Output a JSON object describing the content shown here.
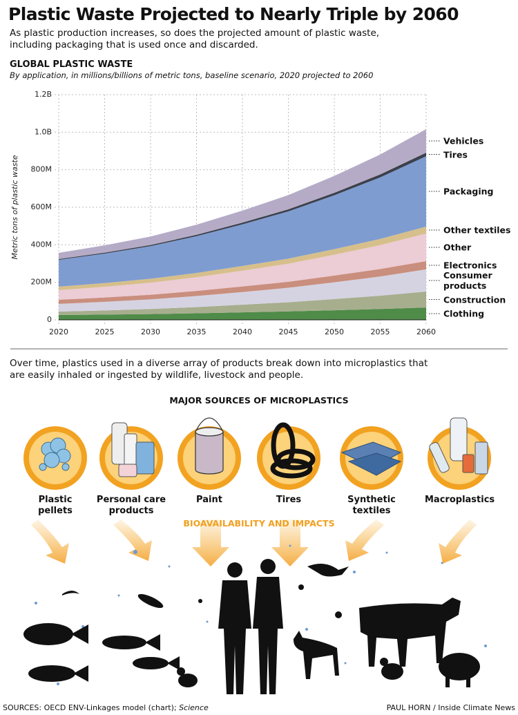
{
  "header": {
    "title": "Plastic Waste Projected to Nearly Triple by 2060",
    "subtitle": "As plastic production increases, so does the projected amount of plastic waste, including packaging that is used once and discarded."
  },
  "chart_data": {
    "type": "area",
    "stacked": true,
    "title": "GLOBAL PLASTIC WASTE",
    "subtitle": "By application, in millions/billions of metric tons, baseline scenario, 2020 projected to 2060",
    "y_label": "Metric tons of plastic waste",
    "x": [
      2020,
      2025,
      2030,
      2035,
      2040,
      2045,
      2050,
      2055,
      2060
    ],
    "xlim": [
      2020,
      2060
    ],
    "xticks": [
      2020,
      2025,
      2030,
      2035,
      2040,
      2045,
      2050,
      2055,
      2060
    ],
    "ylim": [
      0,
      1200000000
    ],
    "yticks": [
      0,
      {
        "value": 200000000,
        "label": "200M"
      },
      {
        "value": 400000000,
        "label": "400M"
      },
      {
        "value": 600000000,
        "label": "600M"
      },
      {
        "value": 800000000,
        "label": "800M"
      },
      {
        "value": 1000000000,
        "label": "1.0B"
      },
      {
        "value": 1200000000,
        "label": "1.2B"
      }
    ],
    "grid": true,
    "series": [
      {
        "name": "Clothing",
        "color": "#4f8b49",
        "values": [
          26000000,
          28000000,
          31000000,
          35000000,
          40000000,
          45000000,
          51000000,
          58000000,
          66000000
        ]
      },
      {
        "name": "Construction",
        "color": "#a7ae8e",
        "values": [
          18000000,
          22000000,
          27000000,
          33000000,
          41000000,
          49000000,
          60000000,
          71000000,
          85000000
        ]
      },
      {
        "name": "Consumer products",
        "color": "#d5d3e2",
        "values": [
          41000000,
          46000000,
          51000000,
          59000000,
          67000000,
          77000000,
          89000000,
          102000000,
          118000000
        ]
      },
      {
        "name": "Electronics",
        "color": "#c98e7d",
        "values": [
          22000000,
          23000000,
          25000000,
          27000000,
          30000000,
          32000000,
          36000000,
          40000000,
          44000000
        ]
      },
      {
        "name": "Other",
        "color": "#ecccd5",
        "values": [
          51000000,
          57000000,
          64000000,
          73000000,
          84000000,
          96000000,
          111000000,
          127000000,
          147000000
        ]
      },
      {
        "name": "Other textiles",
        "color": "#d7bf8b",
        "values": [
          19000000,
          20000000,
          21000000,
          23000000,
          25000000,
          27000000,
          30000000,
          33000000,
          37000000
        ]
      },
      {
        "name": "Packaging",
        "color": "#7e9cd0",
        "values": [
          143000000,
          157000000,
          174000000,
          196000000,
          222000000,
          252000000,
          287000000,
          328000000,
          375000000
        ]
      },
      {
        "name": "Tires",
        "color": "#3b404b",
        "values": [
          4000000,
          5000000,
          6000000,
          7000000,
          9000000,
          11000000,
          13000000,
          16000000,
          19000000
        ]
      },
      {
        "name": "Vehicles",
        "color": "#b5abc7",
        "values": [
          33000000,
          39000000,
          45000000,
          54000000,
          64000000,
          76000000,
          90000000,
          106000000,
          125000000
        ]
      }
    ]
  },
  "microplastics": {
    "intro": "Over time, plastics used in a diverse array of products break down into microplastics that are easily inhaled or ingested by wildlife, livestock and people.",
    "heading": "MAJOR SOURCES OF MICROPLASTICS",
    "sources": [
      "Plastic pellets",
      "Personal care products",
      "Paint",
      "Tires",
      "Synthetic textiles",
      "Macroplastics"
    ],
    "impacts": "BIOAVAILABILITY AND IMPACTS"
  },
  "footer": {
    "sources": "SOURCES: OECD ENV-Linkages model (chart); ",
    "sources_italic": "Science",
    "credit": "PAUL HORN / Inside Climate News"
  }
}
